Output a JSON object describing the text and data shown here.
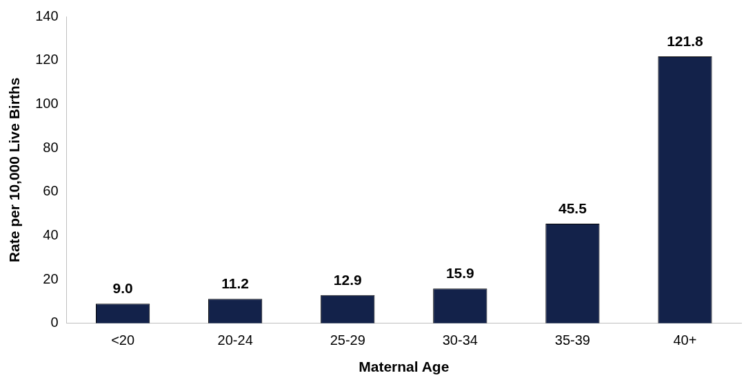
{
  "chart_data": {
    "type": "bar",
    "xlabel": "Maternal Age",
    "ylabel": "Rate per 10,000 Live Births",
    "categories": [
      "<20",
      "20-24",
      "25-29",
      "30-34",
      "35-39",
      "40+"
    ],
    "values": [
      9.0,
      11.2,
      12.9,
      15.9,
      45.5,
      121.8
    ],
    "color": "#13224a",
    "value_labels": [
      "9.0",
      "11.2",
      "12.9",
      "15.9",
      "45.5",
      "121.8"
    ],
    "ylim": [
      0,
      140
    ],
    "yticks": [
      0,
      20,
      40,
      60,
      80,
      100,
      120,
      140
    ],
    "grid": false,
    "legend": false
  }
}
